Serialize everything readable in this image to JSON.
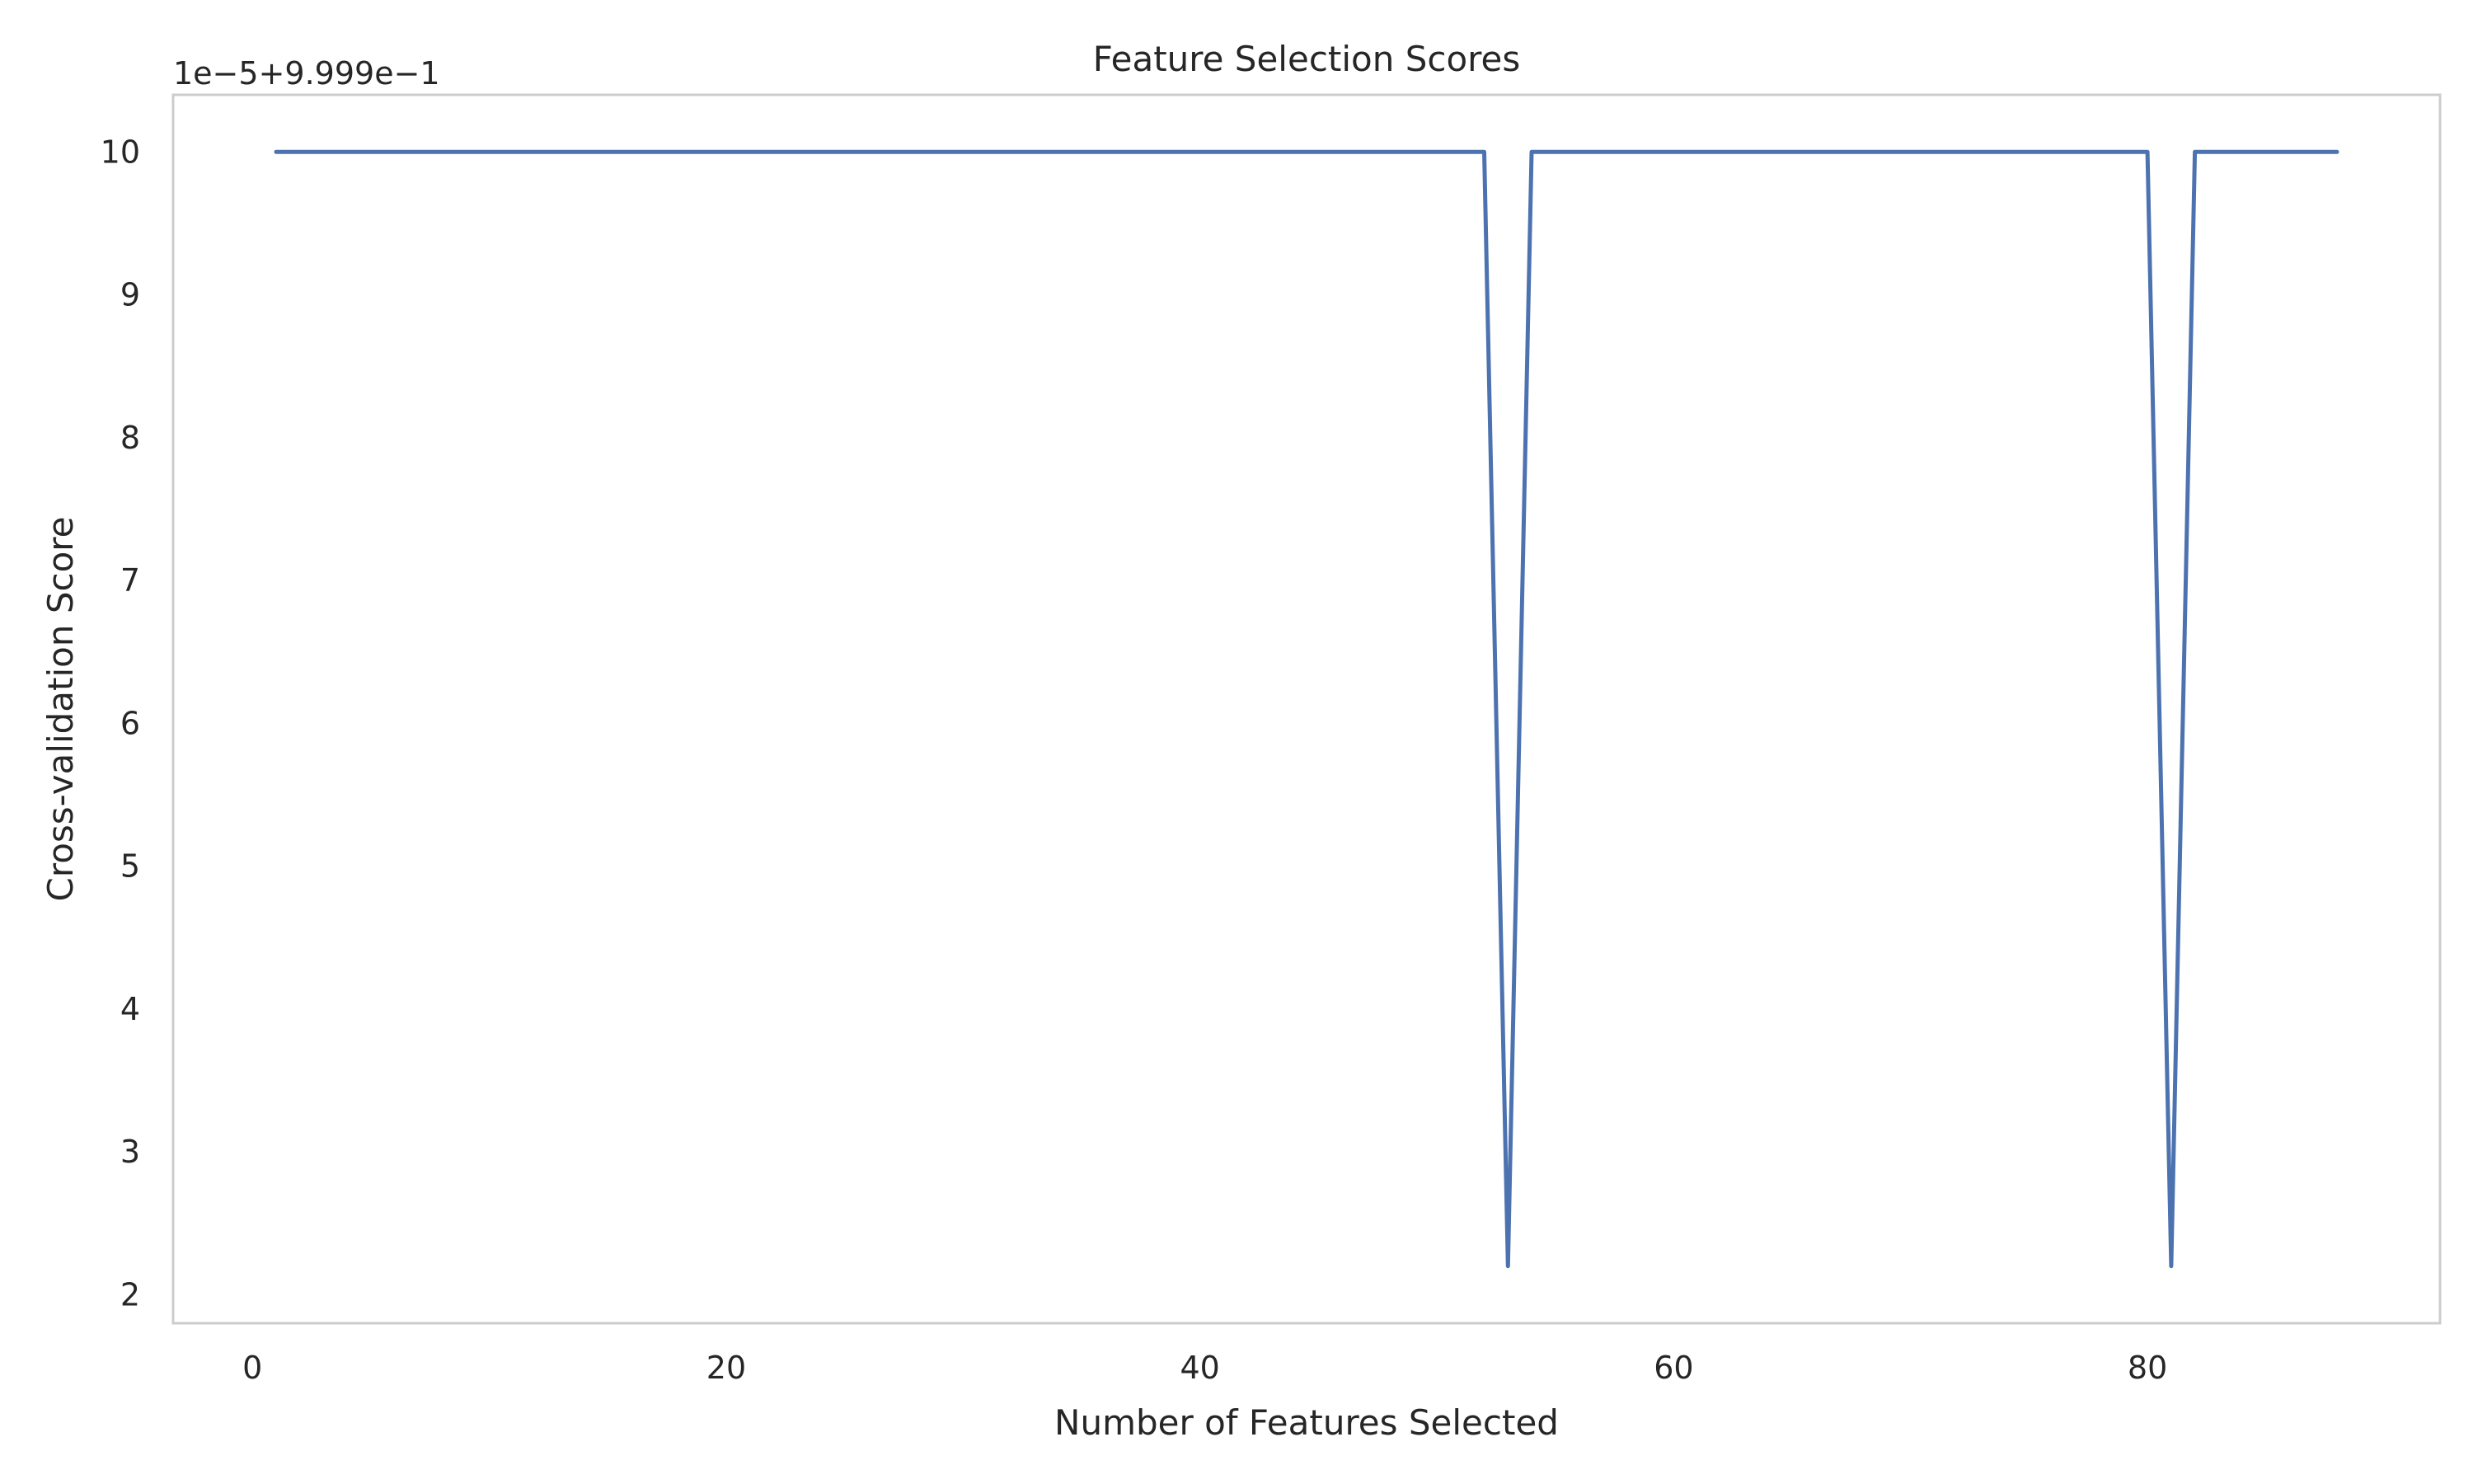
{
  "chart_data": {
    "type": "line",
    "title": "Feature Selection Scores",
    "xlabel": "Number of Features Selected",
    "ylabel": "Cross-validation Score",
    "offset_label": "1e−5+9.999e−1",
    "xlim": [
      -3.35,
      92.35
    ],
    "ylim": [
      1.8,
      10.4
    ],
    "x_ticks": [
      0,
      20,
      40,
      60,
      80
    ],
    "x_tick_labels": [
      "0",
      "20",
      "40",
      "60",
      "80"
    ],
    "y_ticks": [
      2,
      3,
      4,
      5,
      6,
      7,
      8,
      9,
      10
    ],
    "y_tick_labels": [
      "2",
      "3",
      "4",
      "5",
      "6",
      "7",
      "8",
      "9",
      "10"
    ],
    "grid": false,
    "series": [
      {
        "color": "#4c72b0",
        "points": [
          [
            1,
            10.0
          ],
          [
            52,
            10.0
          ],
          [
            53,
            2.2
          ],
          [
            54,
            10.0
          ],
          [
            80,
            10.0
          ],
          [
            81,
            2.2
          ],
          [
            82,
            10.0
          ],
          [
            88,
            10.0
          ]
        ]
      }
    ]
  }
}
